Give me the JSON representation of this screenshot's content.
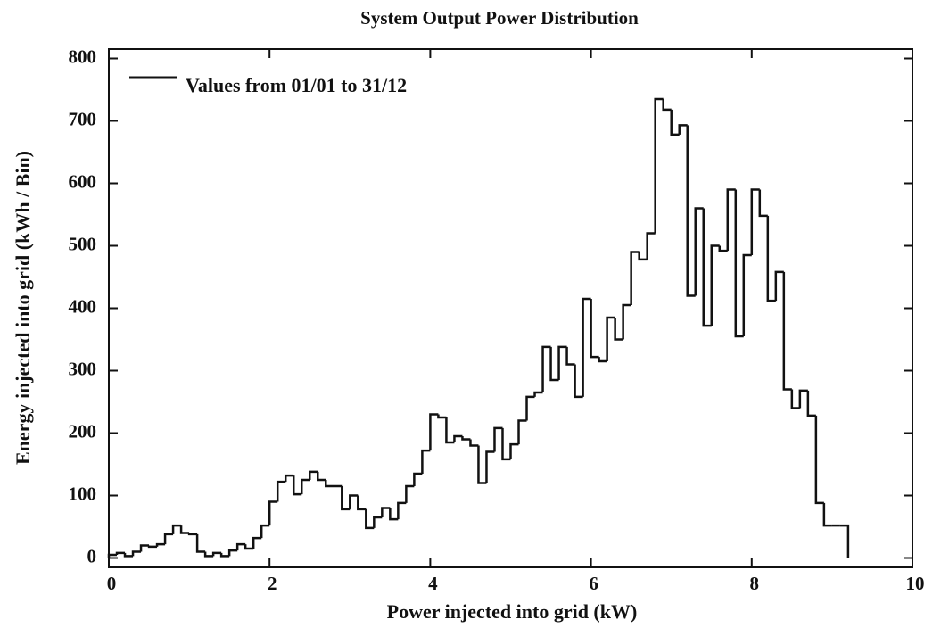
{
  "chart_data": {
    "type": "histogram",
    "title": "System Output Power Distribution",
    "xlabel": "Power injected into grid (kW)",
    "ylabel": "Energy injected into grid (kWh / Bin)",
    "series": [
      {
        "name": "Values from 01/01 to 31/12",
        "color": "#111111",
        "bins": [
          0,
          0.1,
          0.2,
          0.3,
          0.4,
          0.5,
          0.6,
          0.7,
          0.8,
          0.9,
          1,
          1.1,
          1.2,
          1.3,
          1.4,
          1.5,
          1.6,
          1.7,
          1.8,
          1.9,
          2,
          2.1,
          2.2,
          2.3,
          2.4,
          2.5,
          2.6,
          2.7,
          2.8,
          2.9,
          3,
          3.1,
          3.2,
          3.3,
          3.4,
          3.5,
          3.6,
          3.7,
          3.8,
          3.9,
          4,
          4.1,
          4.2,
          4.3,
          4.4,
          4.5,
          4.6,
          4.7,
          4.8,
          4.9,
          5,
          5.1,
          5.2,
          5.3,
          5.4,
          5.5,
          5.6,
          5.7,
          5.8,
          5.9,
          6,
          6.1,
          6.2,
          6.3,
          6.4,
          6.5,
          6.6,
          6.7,
          6.8,
          6.9,
          7,
          7.1,
          7.2,
          7.3,
          7.4,
          7.5,
          7.6,
          7.7,
          7.8,
          7.9,
          8,
          8.1,
          8.2,
          8.3,
          8.4,
          8.5,
          8.6,
          8.7,
          8.8,
          8.9,
          9,
          9.1,
          9.2
        ],
        "counts": [
          5,
          8,
          3,
          10,
          20,
          18,
          22,
          38,
          52,
          40,
          38,
          10,
          3,
          8,
          3,
          12,
          22,
          15,
          32,
          52,
          90,
          122,
          132,
          102,
          125,
          138,
          125,
          115,
          115,
          78,
          100,
          78,
          48,
          65,
          80,
          62,
          88,
          115,
          135,
          172,
          230,
          225,
          185,
          195,
          190,
          180,
          120,
          170,
          208,
          158,
          182,
          220,
          258,
          265,
          338,
          285,
          338,
          310,
          258,
          415,
          322,
          315,
          385,
          350,
          405,
          490,
          478,
          520,
          735,
          718,
          678,
          693,
          420,
          560,
          372,
          500,
          492,
          590,
          355,
          485,
          590,
          548,
          412,
          458,
          270,
          240,
          268,
          228,
          88,
          52,
          52,
          52
        ]
      }
    ],
    "xlim": [
      0,
      10
    ],
    "xticks": [
      0,
      2,
      4,
      6,
      8,
      10
    ],
    "ylim": [
      -15,
      815
    ],
    "yticks": [
      0,
      100,
      200,
      300,
      400,
      500,
      600,
      700,
      800
    ],
    "legend": "upper left"
  }
}
